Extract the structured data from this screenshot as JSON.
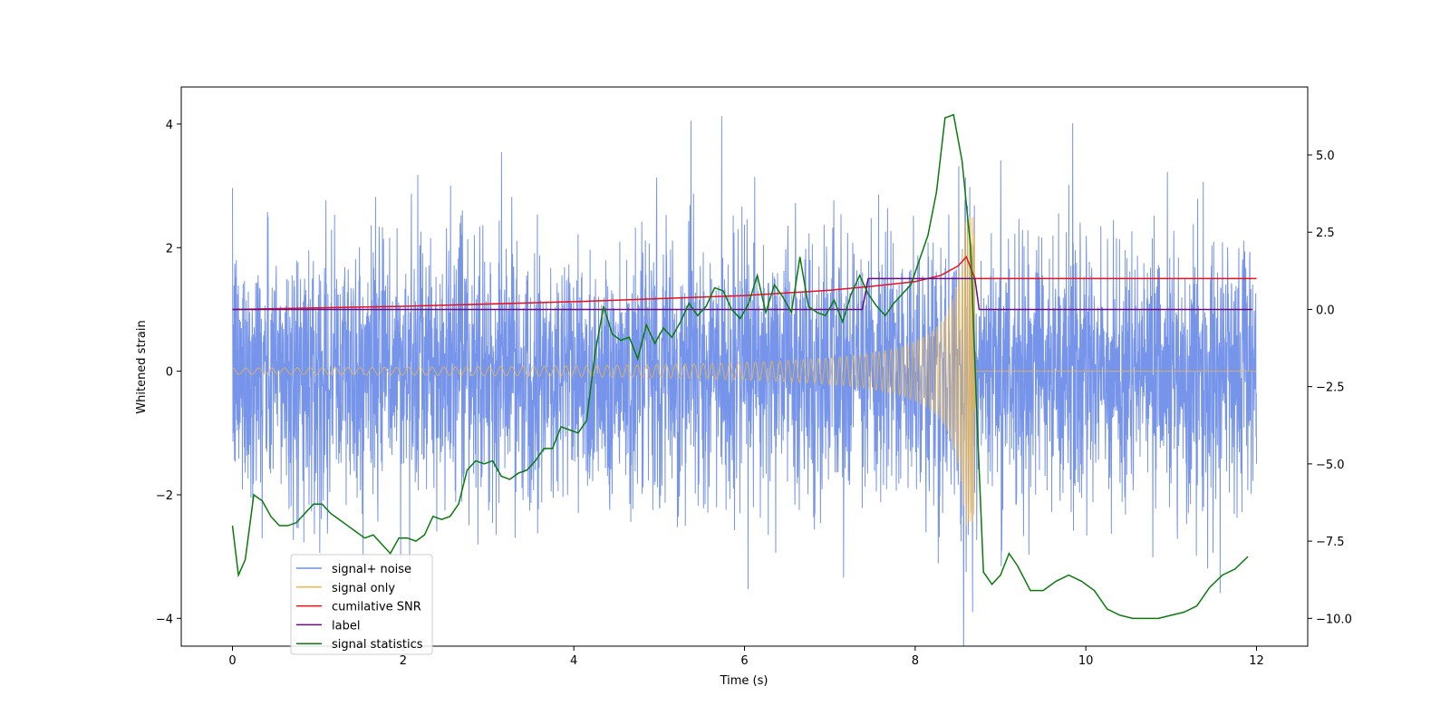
{
  "chart_data": {
    "type": "line",
    "title": "",
    "xlabel": "Time (s)",
    "ylabel": "Whitened strain",
    "y2label": "",
    "xlim": [
      -0.6,
      12.6
    ],
    "ylim": [
      -4.45,
      4.6
    ],
    "y2lim": [
      -10.9,
      7.2
    ],
    "x_ticks": [
      0,
      2,
      4,
      6,
      8,
      10,
      12
    ],
    "x_tick_labels": [
      "0",
      "2",
      "4",
      "6",
      "8",
      "10",
      "12"
    ],
    "y_ticks": [
      -4,
      -2,
      0,
      2,
      4
    ],
    "y_tick_labels": [
      "−4",
      "−2",
      "0",
      "2",
      "4"
    ],
    "y2_ticks": [
      -10,
      -7.5,
      -5,
      -2.5,
      0,
      2.5,
      5
    ],
    "y2_tick_labels": [
      "−10.0",
      "−7.5",
      "−5.0",
      "−2.5",
      "0.0",
      "2.5",
      "5.0"
    ],
    "legend_position": "lower-left",
    "series": [
      {
        "name": "signal+ noise",
        "color": "#6f8ee8",
        "axis": "left",
        "description": "whitened strain noise, ~0 mean, amplitude up to ~4 between t=0 and t=12"
      },
      {
        "name": "signal only",
        "color": "#f5b942",
        "axis": "left",
        "description": "chirp, amplitude ~0.05 rising to ~2.5 at t=8.7, then 0",
        "x_range": [
          0,
          12
        ],
        "t_merger": 8.7,
        "amp_start": 0.05,
        "amp_peak": 2.5
      },
      {
        "name": "cumilative SNR",
        "color": "#e8111c",
        "axis": "right",
        "x": [
          0,
          2,
          4,
          6,
          7,
          7.5,
          8,
          8.3,
          8.5,
          8.6,
          8.7,
          12
        ],
        "values": [
          0,
          0.1,
          0.25,
          0.45,
          0.62,
          0.75,
          0.9,
          1.1,
          1.4,
          1.7,
          1.0,
          1.0
        ]
      },
      {
        "name": "label",
        "color": "#6a0d83",
        "axis": "right",
        "x": [
          0,
          7.38,
          7.45,
          8.7,
          8.75,
          11.95
        ],
        "values": [
          0,
          0,
          1,
          1,
          0,
          0
        ]
      },
      {
        "name": "signal statistics",
        "color": "#0a7a0a",
        "axis": "right",
        "x": [
          0,
          0.07,
          0.15,
          0.25,
          0.35,
          0.45,
          0.55,
          0.65,
          0.75,
          0.85,
          0.95,
          1.05,
          1.15,
          1.25,
          1.35,
          1.45,
          1.55,
          1.65,
          1.75,
          1.85,
          1.95,
          2.05,
          2.15,
          2.25,
          2.35,
          2.45,
          2.55,
          2.65,
          2.75,
          2.85,
          2.95,
          3.05,
          3.15,
          3.25,
          3.35,
          3.45,
          3.55,
          3.65,
          3.75,
          3.85,
          3.95,
          4.05,
          4.15,
          4.25,
          4.35,
          4.45,
          4.55,
          4.65,
          4.75,
          4.85,
          4.95,
          5.05,
          5.15,
          5.25,
          5.35,
          5.45,
          5.55,
          5.65,
          5.75,
          5.85,
          5.95,
          6.05,
          6.15,
          6.25,
          6.35,
          6.45,
          6.55,
          6.65,
          6.75,
          6.85,
          6.95,
          7.05,
          7.15,
          7.25,
          7.35,
          7.45,
          7.55,
          7.65,
          7.75,
          7.85,
          7.95,
          8.05,
          8.15,
          8.25,
          8.35,
          8.45,
          8.55,
          8.65,
          8.72,
          8.8,
          8.9,
          9.0,
          9.1,
          9.2,
          9.35,
          9.5,
          9.65,
          9.8,
          9.95,
          10.1,
          10.25,
          10.4,
          10.55,
          10.7,
          10.85,
          11.0,
          11.15,
          11.3,
          11.45,
          11.6,
          11.75,
          11.9
        ],
        "values": [
          -7.0,
          -8.6,
          -8.1,
          -6.0,
          -6.2,
          -6.7,
          -7.0,
          -7.0,
          -6.9,
          -6.6,
          -6.3,
          -6.3,
          -6.6,
          -6.8,
          -7.0,
          -7.2,
          -7.4,
          -7.3,
          -7.6,
          -7.9,
          -7.4,
          -7.4,
          -7.5,
          -7.3,
          -6.7,
          -6.8,
          -6.7,
          -6.3,
          -5.2,
          -4.9,
          -5.0,
          -4.9,
          -5.4,
          -5.5,
          -5.3,
          -5.2,
          -4.9,
          -4.5,
          -4.5,
          -3.8,
          -3.9,
          -4.0,
          -3.6,
          -1.4,
          0.1,
          -0.8,
          -1.0,
          -0.9,
          -1.6,
          -0.5,
          -1.1,
          -0.6,
          -0.9,
          -0.4,
          0.2,
          -0.2,
          0.1,
          0.7,
          0.6,
          0.0,
          -0.3,
          0.2,
          1.1,
          -0.1,
          0.8,
          0.4,
          -0.1,
          1.7,
          0.1,
          -0.1,
          -0.2,
          0.3,
          -0.4,
          0.5,
          1.1,
          0.5,
          0.1,
          -0.2,
          0.2,
          0.5,
          0.8,
          1.6,
          2.4,
          3.8,
          6.2,
          6.3,
          4.8,
          2.0,
          -3.2,
          -8.5,
          -8.9,
          -8.6,
          -7.9,
          -8.3,
          -9.1,
          -9.1,
          -8.8,
          -8.6,
          -8.8,
          -9.1,
          -9.7,
          -9.9,
          -10.0,
          -10.0,
          -10.0,
          -9.9,
          -9.8,
          -9.6,
          -9.0,
          -8.6,
          -8.4,
          -8.0
        ]
      }
    ]
  }
}
